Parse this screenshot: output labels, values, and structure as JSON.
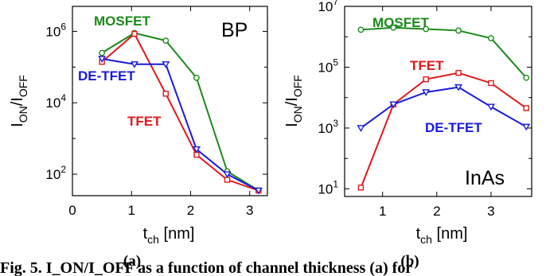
{
  "chart_data": [
    {
      "type": "line",
      "panel_label": "BP",
      "subfigure": "(a)",
      "xlabel": "t",
      "xlabel_sub": "ch",
      "xlabel_unit": " [nm]",
      "ylabel": "I",
      "ylabel_sub1": "ON",
      "ylabel_mid": "/I",
      "ylabel_sub2": "OFF",
      "y_scale": "log",
      "xlim": [
        0,
        3.3
      ],
      "ylim_log10": [
        1.4,
        6.7
      ],
      "x_ticks": [
        0,
        1,
        2,
        3
      ],
      "y_tick_exponents": [
        2,
        4,
        6
      ],
      "series": [
        {
          "name": "MOSFET",
          "color": "#1a8a1a",
          "marker": "circle",
          "x": [
            0.5,
            1.05,
            1.58,
            2.1,
            2.62,
            3.15
          ],
          "y": [
            250000,
            900000,
            550000,
            50000,
            120,
            35
          ]
        },
        {
          "name": "TFET",
          "color": "#e0191b",
          "marker": "square",
          "x": [
            0.5,
            1.05,
            1.58,
            2.1,
            2.62,
            3.15
          ],
          "y": [
            140000,
            850000,
            18000,
            350,
            70,
            35
          ]
        },
        {
          "name": "DE-TFET",
          "color": "#1a1adb",
          "marker": "triangle-down",
          "x": [
            0.5,
            1.05,
            1.58,
            2.1,
            2.62,
            3.15
          ],
          "y": [
            170000,
            120000,
            120000,
            500,
            100,
            35
          ]
        }
      ]
    },
    {
      "type": "line",
      "panel_label": "InAs",
      "subfigure": "(b)",
      "xlabel": "t",
      "xlabel_sub": "ch",
      "xlabel_unit": " [nm]",
      "ylabel": "I",
      "ylabel_sub1": "ON",
      "ylabel_mid": "/I",
      "ylabel_sub2": "OFF",
      "y_scale": "log",
      "xlim": [
        0.3,
        3.75
      ],
      "ylim_log10": [
        0.75,
        7
      ],
      "x_ticks": [
        1,
        2,
        3
      ],
      "y_tick_exponents": [
        1,
        3,
        5,
        7
      ],
      "series": [
        {
          "name": "MOSFET",
          "color": "#1a8a1a",
          "marker": "circle",
          "x": [
            0.6,
            1.2,
            1.8,
            2.4,
            3.0,
            3.65
          ],
          "y": [
            1700000,
            2000000,
            1800000,
            1600000,
            900000,
            45000
          ]
        },
        {
          "name": "TFET",
          "color": "#e0191b",
          "marker": "square",
          "x": [
            0.6,
            1.2,
            1.8,
            2.4,
            3.0,
            3.65
          ],
          "y": [
            11,
            6000,
            40000,
            65000,
            30000,
            4500
          ]
        },
        {
          "name": "DE-TFET",
          "color": "#1a1adb",
          "marker": "triangle-down",
          "x": [
            0.6,
            1.2,
            1.8,
            2.4,
            3.0,
            3.65
          ],
          "y": [
            1000,
            6000,
            15000,
            22000,
            5000,
            1100
          ]
        }
      ]
    }
  ],
  "caption": "Fig. 5. I_ON/I_OFF as a function of channel thickness (a) for"
}
